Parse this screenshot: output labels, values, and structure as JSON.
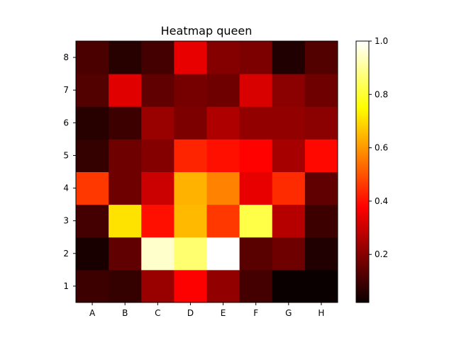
{
  "chart_data": {
    "type": "heatmap",
    "title": "Heatmap queen",
    "x_categories": [
      "A",
      "B",
      "C",
      "D",
      "E",
      "F",
      "G",
      "H"
    ],
    "y_categories": [
      "1",
      "2",
      "3",
      "4",
      "5",
      "6",
      "7",
      "8"
    ],
    "values": [
      [
        0.09,
        0.08,
        0.22,
        0.36,
        0.21,
        0.1,
        0.02,
        0.02
      ],
      [
        0.04,
        0.14,
        0.95,
        0.86,
        1.0,
        0.13,
        0.16,
        0.05
      ],
      [
        0.1,
        0.71,
        0.4,
        0.65,
        0.46,
        0.82,
        0.26,
        0.09
      ],
      [
        0.46,
        0.16,
        0.29,
        0.64,
        0.57,
        0.33,
        0.44,
        0.14
      ],
      [
        0.08,
        0.16,
        0.19,
        0.43,
        0.4,
        0.38,
        0.24,
        0.39
      ],
      [
        0.06,
        0.09,
        0.22,
        0.18,
        0.25,
        0.21,
        0.21,
        0.2
      ],
      [
        0.12,
        0.32,
        0.14,
        0.17,
        0.16,
        0.31,
        0.2,
        0.16
      ],
      [
        0.11,
        0.06,
        0.1,
        0.33,
        0.19,
        0.18,
        0.05,
        0.12
      ]
    ],
    "colormap": "hot",
    "colorbar": {
      "range": [
        0.02,
        1.0
      ],
      "ticks": [
        "0.2",
        "0.4",
        "0.6",
        "0.8",
        "1.0"
      ],
      "tick_values": [
        0.2,
        0.4,
        0.6,
        0.8,
        1.0
      ]
    },
    "grid": false
  }
}
